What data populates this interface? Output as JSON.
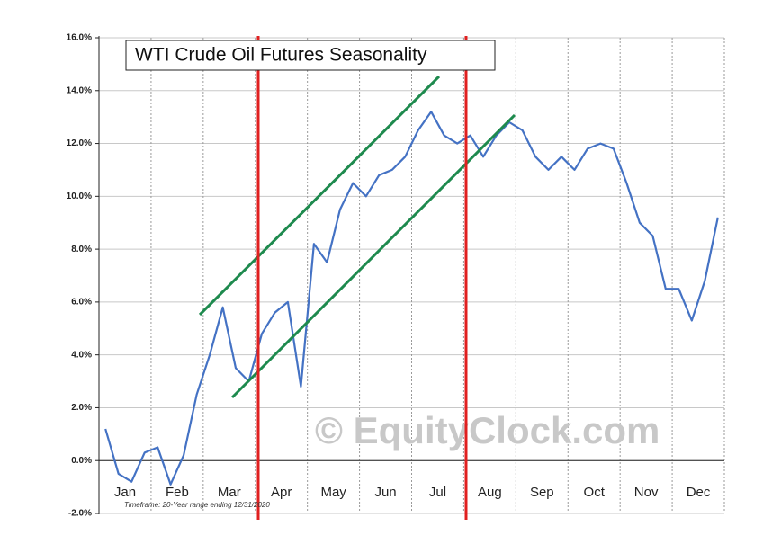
{
  "chart_data": {
    "type": "line",
    "title": "WTI Crude Oil Futures Seasonality",
    "watermark": "© EquityClock.com",
    "footnote": "Timeframe: 20-Year range ending 12/31/2020",
    "categories": [
      "Jan",
      null,
      null,
      null,
      "Feb",
      null,
      null,
      null,
      "Mar",
      null,
      null,
      null,
      "Apr",
      null,
      null,
      null,
      "May",
      null,
      null,
      null,
      "Jun",
      null,
      null,
      null,
      "Jul",
      null,
      null,
      null,
      "Aug",
      null,
      null,
      null,
      "Sep",
      null,
      null,
      null,
      "Oct",
      null,
      null,
      null,
      "Nov",
      null,
      null,
      null,
      "Dec",
      null,
      null,
      null
    ],
    "values": [
      1.2,
      -0.5,
      -0.8,
      0.3,
      0.5,
      -0.9,
      0.2,
      2.5,
      4.0,
      5.8,
      3.5,
      3.0,
      4.8,
      5.6,
      6.0,
      2.8,
      8.2,
      7.5,
      9.5,
      10.5,
      10.0,
      10.8,
      11.0,
      11.5,
      12.5,
      13.2,
      12.3,
      12.0,
      12.3,
      11.5,
      12.3,
      12.8,
      12.5,
      11.5,
      11.0,
      11.5,
      11.0,
      11.8,
      12.0,
      11.8,
      10.5,
      9.0,
      8.5,
      6.5,
      6.5,
      5.3,
      6.8,
      9.2
    ],
    "color": "#4472c4",
    "ylim": [
      -2,
      16
    ],
    "yticks": [
      {
        "value": -2,
        "label": "-2.0%"
      },
      {
        "value": 0,
        "label": "0.0%"
      },
      {
        "value": 2,
        "label": "2.0%"
      },
      {
        "value": 4,
        "label": "4.0%"
      },
      {
        "value": 6,
        "label": "6.0%"
      },
      {
        "value": 8,
        "label": "8.0%"
      },
      {
        "value": 10,
        "label": "10.0%"
      },
      {
        "value": 12,
        "label": "12.0%"
      },
      {
        "value": 14,
        "label": "14.0%"
      },
      {
        "value": 16,
        "label": "16.0%"
      }
    ],
    "grid": true
  }
}
